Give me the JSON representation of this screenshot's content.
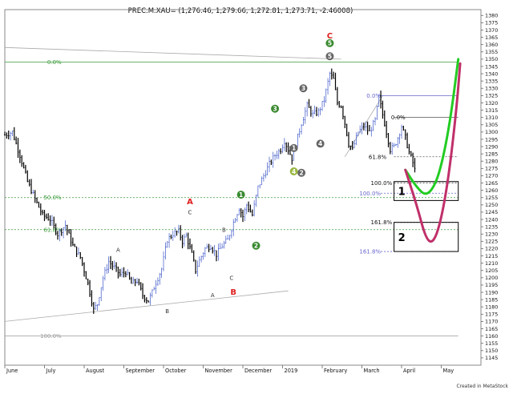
{
  "chart_data": {
    "type": "candlestick",
    "title": "PREC.M.XAU= (1,276.46, 1,279.66, 1,272.81, 1,273.71, -2.46008)",
    "credit": "Created in MetaStock",
    "ylim": [
      1140,
      1384
    ],
    "y_ticks": [
      1145,
      1150,
      1155,
      1160,
      1165,
      1170,
      1175,
      1180,
      1185,
      1190,
      1195,
      1200,
      1205,
      1210,
      1215,
      1220,
      1225,
      1230,
      1235,
      1240,
      1245,
      1250,
      1255,
      1260,
      1265,
      1270,
      1275,
      1280,
      1285,
      1290,
      1295,
      1300,
      1305,
      1310,
      1315,
      1320,
      1325,
      1330,
      1335,
      1340,
      1345,
      1350,
      1355,
      1360,
      1365,
      1370,
      1375,
      1380
    ],
    "x_months": [
      {
        "label": "June",
        "t": 0
      },
      {
        "label": "July",
        "t": 21
      },
      {
        "label": "August",
        "t": 42
      },
      {
        "label": "September",
        "t": 63
      },
      {
        "label": "October",
        "t": 84
      },
      {
        "label": "November",
        "t": 105
      },
      {
        "label": "December",
        "t": 126
      },
      {
        "label": "2019",
        "t": 147
      },
      {
        "label": "February",
        "t": 168
      },
      {
        "label": "March",
        "t": 189
      },
      {
        "label": "April",
        "t": 210
      },
      {
        "label": "May",
        "t": 231
      }
    ],
    "t_range": [
      0,
      252
    ],
    "price_keypoints": [
      [
        0,
        1298
      ],
      [
        4,
        1300
      ],
      [
        8,
        1284
      ],
      [
        12,
        1266
      ],
      [
        16,
        1254
      ],
      [
        20,
        1243
      ],
      [
        24,
        1240
      ],
      [
        28,
        1230
      ],
      [
        32,
        1236
      ],
      [
        36,
        1222
      ],
      [
        40,
        1214
      ],
      [
        44,
        1196
      ],
      [
        47,
        1178
      ],
      [
        49,
        1182
      ],
      [
        52,
        1200
      ],
      [
        55,
        1211
      ],
      [
        58,
        1207
      ],
      [
        61,
        1202
      ],
      [
        64,
        1204
      ],
      [
        67,
        1196
      ],
      [
        70,
        1198
      ],
      [
        73,
        1188
      ],
      [
        76,
        1184
      ],
      [
        78,
        1190
      ],
      [
        80,
        1197
      ],
      [
        83,
        1206
      ],
      [
        86,
        1226
      ],
      [
        89,
        1230
      ],
      [
        92,
        1232
      ],
      [
        94,
        1225
      ],
      [
        96,
        1229
      ],
      [
        99,
        1216
      ],
      [
        101,
        1205
      ],
      [
        103,
        1212
      ],
      [
        106,
        1220
      ],
      [
        109,
        1222
      ],
      [
        112,
        1216
      ],
      [
        115,
        1222
      ],
      [
        118,
        1226
      ],
      [
        121,
        1238
      ],
      [
        124,
        1248
      ],
      [
        126,
        1242
      ],
      [
        128,
        1250
      ],
      [
        131,
        1243
      ],
      [
        134,
        1262
      ],
      [
        137,
        1270
      ],
      [
        140,
        1278
      ],
      [
        143,
        1284
      ],
      [
        146,
        1288
      ],
      [
        148,
        1294
      ],
      [
        150,
        1288
      ],
      [
        152,
        1282
      ],
      [
        154,
        1292
      ],
      [
        157,
        1306
      ],
      [
        160,
        1318
      ],
      [
        163,
        1312
      ],
      [
        166,
        1314
      ],
      [
        169,
        1322
      ],
      [
        172,
        1340
      ],
      [
        174,
        1336
      ],
      [
        176,
        1320
      ],
      [
        178,
        1318
      ],
      [
        180,
        1306
      ],
      [
        182,
        1292
      ],
      [
        184,
        1288
      ],
      [
        187,
        1300
      ],
      [
        190,
        1304
      ],
      [
        193,
        1300
      ],
      [
        196,
        1308
      ],
      [
        198,
        1324
      ],
      [
        200,
        1312
      ],
      [
        202,
        1300
      ],
      [
        204,
        1288
      ],
      [
        206,
        1290
      ],
      [
        208,
        1296
      ],
      [
        210,
        1304
      ],
      [
        212,
        1296
      ],
      [
        214,
        1286
      ],
      [
        216,
        1279
      ],
      [
        217,
        1274
      ]
    ],
    "fib_levels": [
      {
        "label": "0.0%",
        "value": 1348,
        "color": "#3a9a3a",
        "style": "solid",
        "t_start": 0,
        "t_end": 240
      },
      {
        "label": "50.0%",
        "value": 1255,
        "color": "#3a9a3a",
        "style": "dashed",
        "t_start": 0,
        "t_end": 240
      },
      {
        "label": "61.8%",
        "value": 1233,
        "color": "#3a9a3a",
        "style": "dashed",
        "t_start": 0,
        "t_end": 240
      },
      {
        "label": "100.0%",
        "value": 1160,
        "color": "#9a9a9a",
        "style": "solid",
        "t_start": 0,
        "t_end": 240
      },
      {
        "label": "0.0%",
        "value": 1325,
        "color": "#6666cc",
        "style": "solid",
        "t_start": 199,
        "t_end": 240
      },
      {
        "label": "100.0%",
        "value": 1258,
        "color": "#6666cc",
        "style": "dashed",
        "t_start": 199,
        "t_end": 240
      },
      {
        "label": "161.8%",
        "value": 1218,
        "color": "#6666cc",
        "style": "dashed",
        "t_start": 199,
        "t_end": 240
      },
      {
        "label": "0.0%",
        "value": 1310,
        "color": "#555555",
        "style": "solid",
        "t_start": 206,
        "t_end": 240
      },
      {
        "label": "61.8%",
        "value": 1283,
        "color": "#555555",
        "style": "dashed",
        "t_start": 206,
        "t_end": 240
      },
      {
        "label": "100.0%",
        "value": 1265,
        "color": "#555555",
        "style": "dashed",
        "t_start": 206,
        "t_end": 240
      },
      {
        "label": "161.8%",
        "value": 1238,
        "color": "#555555",
        "style": "dashed",
        "t_start": 206,
        "t_end": 240
      }
    ],
    "trend_lines": [
      {
        "t1": 0,
        "v1": 1358,
        "t2": 178,
        "v2": 1350,
        "color": "#aaaaaa"
      },
      {
        "t1": 0,
        "v1": 1170,
        "t2": 150,
        "v2": 1191,
        "color": "#aaaaaa"
      },
      {
        "t1": 180,
        "v1": 1283,
        "t2": 200,
        "v2": 1325,
        "color": "#aaaaaa"
      }
    ],
    "wave_labels": [
      {
        "text": "C",
        "t": 172,
        "v": 1366,
        "color": "#e02020",
        "kind": "letter"
      },
      {
        "text": "5",
        "t": 172,
        "v": 1361,
        "color": "#3a8a30",
        "kind": "circle"
      },
      {
        "text": "5",
        "t": 172,
        "v": 1352,
        "color": "#666666",
        "kind": "circle"
      },
      {
        "text": "3",
        "t": 158,
        "v": 1330,
        "color": "#666666",
        "kind": "circle"
      },
      {
        "text": "3",
        "t": 143,
        "v": 1316,
        "color": "#3a8a30",
        "kind": "circle"
      },
      {
        "text": "4",
        "t": 167,
        "v": 1292,
        "color": "#666666",
        "kind": "circle"
      },
      {
        "text": "1",
        "t": 153,
        "v": 1289,
        "color": "#666666",
        "kind": "circle"
      },
      {
        "text": "2",
        "t": 157,
        "v": 1272,
        "color": "#666666",
        "kind": "circle"
      },
      {
        "text": "4",
        "t": 153,
        "v": 1273,
        "color": "#99b840",
        "kind": "circle"
      },
      {
        "text": "1",
        "t": 125,
        "v": 1257,
        "color": "#3a8a30",
        "kind": "circle"
      },
      {
        "text": "2",
        "t": 133,
        "v": 1222,
        "color": "#3a8a30",
        "kind": "circle"
      },
      {
        "text": "A",
        "t": 98,
        "v": 1252,
        "color": "#e02020",
        "kind": "letter"
      },
      {
        "text": "C",
        "t": 98,
        "v": 1245,
        "color": "#333333",
        "kind": "small"
      },
      {
        "text": "B",
        "t": 116,
        "v": 1233,
        "color": "#333333",
        "kind": "small"
      },
      {
        "text": "A",
        "t": 60,
        "v": 1219,
        "color": "#333333",
        "kind": "small"
      },
      {
        "text": "B",
        "t": 86,
        "v": 1177,
        "color": "#333333",
        "kind": "small"
      },
      {
        "text": "A",
        "t": 110,
        "v": 1188,
        "color": "#333333",
        "kind": "small"
      },
      {
        "text": "C",
        "t": 120,
        "v": 1200,
        "color": "#333333",
        "kind": "small"
      },
      {
        "text": "B",
        "t": 121,
        "v": 1190,
        "color": "#e02020",
        "kind": "letter"
      }
    ],
    "boxes": [
      {
        "label": "1",
        "t1": 206,
        "t2": 240,
        "v1": 1253,
        "v2": 1266
      },
      {
        "label": "2",
        "t1": 206,
        "t2": 240,
        "v1": 1218,
        "v2": 1238
      }
    ],
    "projections": [
      {
        "color": "#22cc22",
        "points": [
          [
            212,
            1274
          ],
          [
            218,
            1262
          ],
          [
            223,
            1256
          ],
          [
            228,
            1264
          ],
          [
            232,
            1282
          ],
          [
            236,
            1310
          ],
          [
            240,
            1350
          ]
        ]
      },
      {
        "color": "#c0306a",
        "points": [
          [
            212,
            1274
          ],
          [
            218,
            1250
          ],
          [
            223,
            1226
          ],
          [
            227,
            1224
          ],
          [
            231,
            1240
          ],
          [
            235,
            1270
          ],
          [
            239,
            1315
          ],
          [
            241,
            1347
          ]
        ]
      }
    ]
  }
}
